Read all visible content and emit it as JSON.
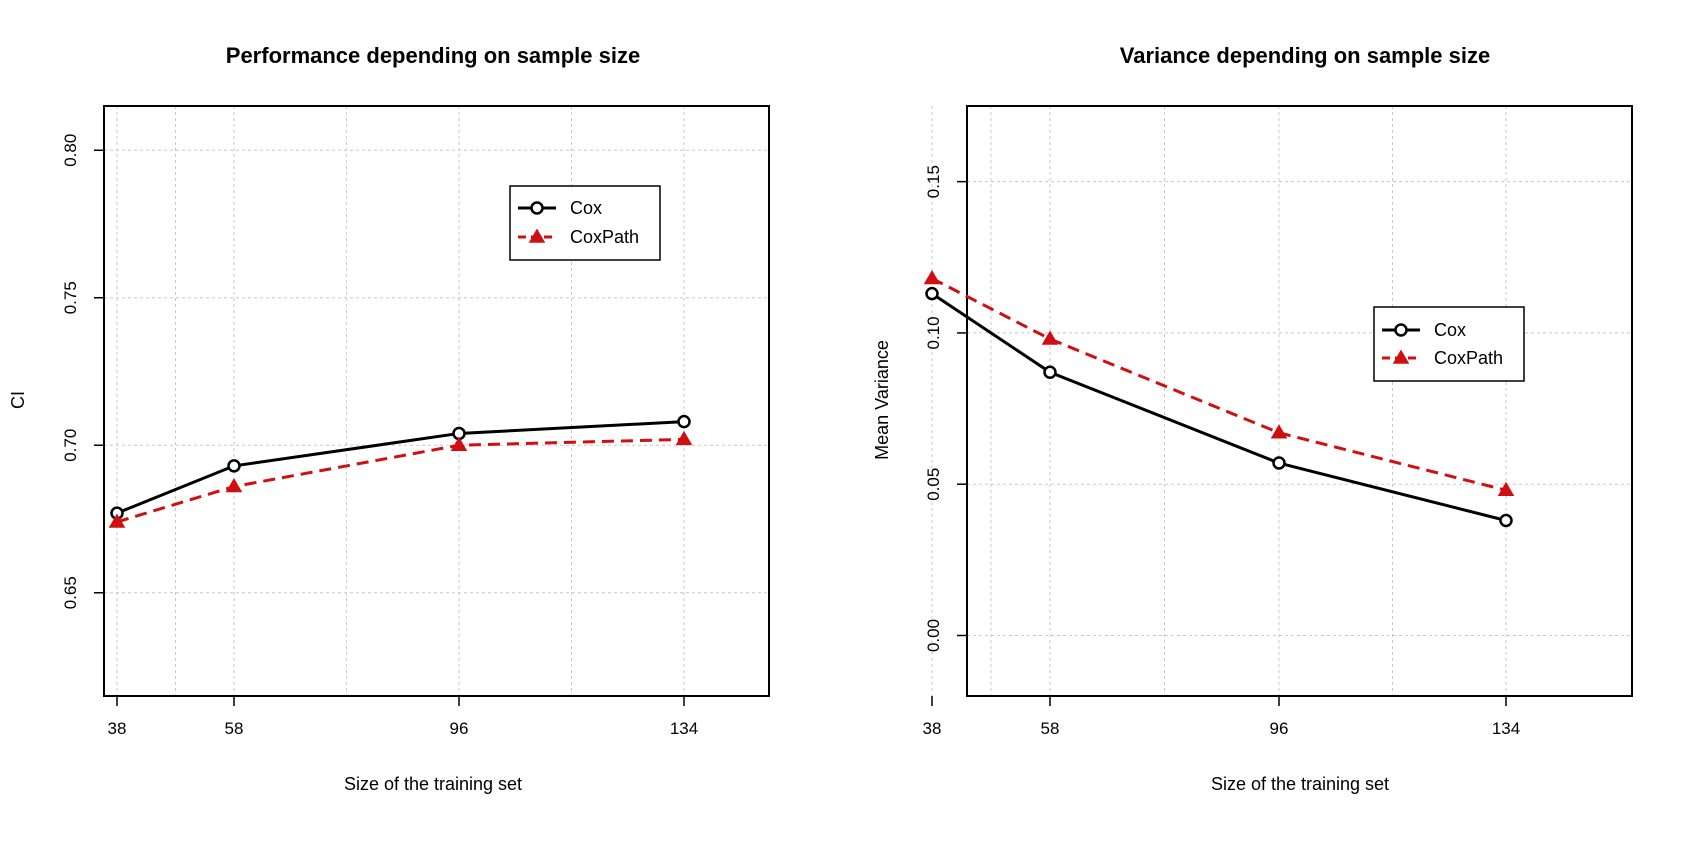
{
  "chart_data": [
    {
      "type": "line",
      "title": "Performance depending on sample size",
      "xlabel": "Size of the training set",
      "ylabel": "CI",
      "x": [
        38,
        58,
        96,
        134
      ],
      "xticks": [
        "38",
        "58",
        "96",
        "134"
      ],
      "ylim": [
        0.615,
        0.815
      ],
      "yticks": [
        "0.65",
        "0.70",
        "0.75",
        "0.80"
      ],
      "grid": true,
      "legend_position": "top-right",
      "series": [
        {
          "name": "Cox",
          "values": [
            0.677,
            0.693,
            0.704,
            0.708
          ],
          "color": "#000000",
          "marker": "circle",
          "dash": "solid"
        },
        {
          "name": "CoxPath",
          "values": [
            0.674,
            0.686,
            0.7,
            0.702
          ],
          "color": "#d01010",
          "marker": "triangle",
          "dash": "dashed"
        }
      ]
    },
    {
      "type": "line",
      "title": "Variance depending on sample size",
      "xlabel": "Size of the training set",
      "ylabel": "Mean Variance",
      "x": [
        38,
        58,
        96,
        134
      ],
      "xticks": [
        "38",
        "58",
        "96",
        "134"
      ],
      "ylim": [
        -0.02,
        0.175
      ],
      "yticks": [
        "0.00",
        "0.05",
        "0.10",
        "0.15"
      ],
      "grid": true,
      "legend_position": "top-right",
      "series": [
        {
          "name": "Cox",
          "values": [
            0.113,
            0.087,
            0.057,
            0.038
          ],
          "color": "#000000",
          "marker": "circle",
          "dash": "solid"
        },
        {
          "name": "CoxPath",
          "values": [
            0.118,
            0.098,
            0.067,
            0.048
          ],
          "color": "#d01010",
          "marker": "triangle",
          "dash": "dashed"
        }
      ]
    }
  ]
}
